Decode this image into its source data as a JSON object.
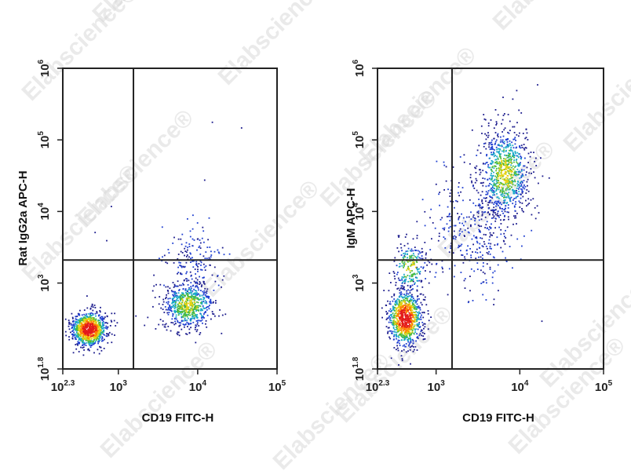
{
  "watermark": "Elabscience®",
  "chart_data": [
    {
      "type": "scatter",
      "xlabel": "CD19 FITC-H",
      "ylabel": "Rat IgG2a APC-H",
      "x_scale": "log10",
      "y_scale": "log10",
      "xlim": [
        199.5,
        100000
      ],
      "ylim": [
        63.1,
        1000000
      ],
      "x_ticks": [
        {
          "base": "10",
          "exp": "2.3",
          "value": 199.5
        },
        {
          "base": "10",
          "exp": "3",
          "value": 1000
        },
        {
          "base": "10",
          "exp": "4",
          "value": 10000
        },
        {
          "base": "10",
          "exp": "5",
          "value": 100000
        }
      ],
      "y_ticks": [
        {
          "base": "10",
          "exp": "1.8",
          "value": 63.1
        },
        {
          "base": "10",
          "exp": "3",
          "value": 1000
        },
        {
          "base": "10",
          "exp": "4",
          "value": 10000
        },
        {
          "base": "10",
          "exp": "5",
          "value": 100000
        },
        {
          "base": "10",
          "exp": "6",
          "value": 1000000
        }
      ],
      "gate": {
        "x": 1550,
        "y": 2100
      },
      "populations": [
        {
          "center": [
            420,
            230
          ],
          "spread": [
            0.11,
            0.12
          ],
          "count": 900,
          "density": "high"
        },
        {
          "center": [
            7500,
            500
          ],
          "spread": [
            0.16,
            0.17
          ],
          "count": 650,
          "density": "medium"
        },
        {
          "center": [
            9000,
            2200
          ],
          "spread": [
            0.17,
            0.22
          ],
          "count": 160,
          "density": "low"
        }
      ],
      "scattered_points": [
        [
          15000,
          180000
        ],
        [
          35000,
          150000
        ],
        [
          12000,
          28000
        ],
        [
          800,
          12000
        ],
        [
          500,
          5200
        ],
        [
          700,
          4000
        ]
      ]
    },
    {
      "type": "scatter",
      "xlabel": "CD19 FITC-H",
      "ylabel": "IgM APC-H",
      "x_scale": "log10",
      "y_scale": "log10",
      "xlim": [
        199.5,
        100000
      ],
      "ylim": [
        63.1,
        1000000
      ],
      "x_ticks": [
        {
          "base": "10",
          "exp": "2.3",
          "value": 199.5
        },
        {
          "base": "10",
          "exp": "3",
          "value": 1000
        },
        {
          "base": "10",
          "exp": "4",
          "value": 10000
        },
        {
          "base": "10",
          "exp": "5",
          "value": 100000
        }
      ],
      "y_ticks": [
        {
          "base": "10",
          "exp": "1.8",
          "value": 63.1
        },
        {
          "base": "10",
          "exp": "3",
          "value": 1000
        },
        {
          "base": "10",
          "exp": "4",
          "value": 10000
        },
        {
          "base": "10",
          "exp": "5",
          "value": 100000
        },
        {
          "base": "10",
          "exp": "6",
          "value": 1000000
        }
      ],
      "gate": {
        "x": 1550,
        "y": 2100
      },
      "populations": [
        {
          "center": [
            420,
            330
          ],
          "spread": [
            0.1,
            0.19
          ],
          "count": 900,
          "density": "high"
        },
        {
          "center": [
            480,
            1700
          ],
          "spread": [
            0.1,
            0.18
          ],
          "count": 220,
          "density": "medium"
        },
        {
          "center": [
            6500,
            35000
          ],
          "spread": [
            0.15,
            0.32
          ],
          "count": 850,
          "density": "medium"
        },
        {
          "center": [
            3200,
            5000
          ],
          "spread": [
            0.22,
            0.38
          ],
          "count": 260,
          "density": "low"
        },
        {
          "center": [
            1300,
            9000
          ],
          "spread": [
            0.14,
            0.4
          ],
          "count": 60,
          "density": "low"
        }
      ],
      "scattered_points": [
        [
          16000,
          600000
        ],
        [
          9000,
          500000
        ],
        [
          22000,
          30000
        ],
        [
          2500,
          800
        ],
        [
          18000,
          300
        ]
      ]
    }
  ]
}
